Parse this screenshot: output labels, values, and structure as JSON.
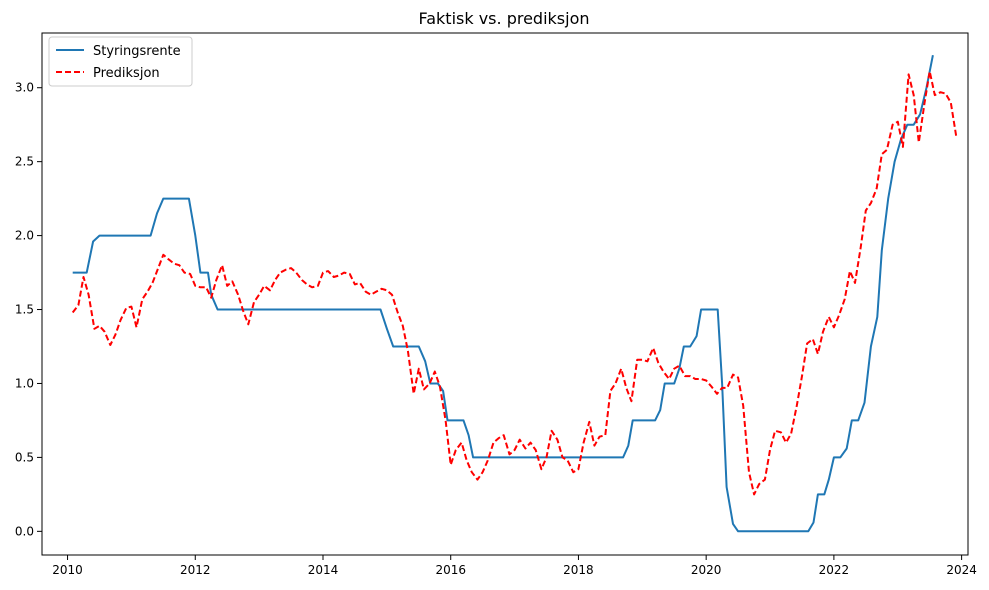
{
  "chart_data": {
    "type": "line",
    "title": "Faktisk vs. prediksjon",
    "xlabel": "",
    "ylabel": "",
    "xlim": [
      2009.6,
      2024.1
    ],
    "ylim": [
      -0.16,
      3.37
    ],
    "x_ticks": [
      2010,
      2012,
      2014,
      2016,
      2018,
      2020,
      2022,
      2024
    ],
    "x_tick_labels": [
      "2010",
      "2012",
      "2014",
      "2016",
      "2018",
      "2020",
      "2022",
      "2024"
    ],
    "y_ticks": [
      0.0,
      0.5,
      1.0,
      1.5,
      2.0,
      2.5,
      3.0
    ],
    "y_tick_labels": [
      "0.0",
      "0.5",
      "1.0",
      "1.5",
      "2.0",
      "2.5",
      "3.0"
    ],
    "legend_position": "top-left",
    "series": [
      {
        "name": "Styringsrente",
        "color": "#1f77b4",
        "style": "solid",
        "points": [
          [
            2010.08,
            1.75
          ],
          [
            2010.3,
            1.75
          ],
          [
            2010.4,
            1.96
          ],
          [
            2010.5,
            2.0
          ],
          [
            2011.3,
            2.0
          ],
          [
            2011.4,
            2.15
          ],
          [
            2011.5,
            2.25
          ],
          [
            2011.9,
            2.25
          ],
          [
            2012.0,
            2.0
          ],
          [
            2012.08,
            1.75
          ],
          [
            2012.2,
            1.75
          ],
          [
            2012.25,
            1.6
          ],
          [
            2012.35,
            1.5
          ],
          [
            2014.9,
            1.5
          ],
          [
            2015.0,
            1.37
          ],
          [
            2015.1,
            1.25
          ],
          [
            2015.5,
            1.25
          ],
          [
            2015.6,
            1.15
          ],
          [
            2015.68,
            1.0
          ],
          [
            2015.8,
            1.0
          ],
          [
            2015.88,
            0.95
          ],
          [
            2015.95,
            0.75
          ],
          [
            2016.2,
            0.75
          ],
          [
            2016.28,
            0.65
          ],
          [
            2016.35,
            0.5
          ],
          [
            2018.7,
            0.5
          ],
          [
            2018.78,
            0.58
          ],
          [
            2018.85,
            0.75
          ],
          [
            2019.2,
            0.75
          ],
          [
            2019.28,
            0.82
          ],
          [
            2019.35,
            1.0
          ],
          [
            2019.5,
            1.0
          ],
          [
            2019.58,
            1.1
          ],
          [
            2019.65,
            1.25
          ],
          [
            2019.75,
            1.25
          ],
          [
            2019.85,
            1.32
          ],
          [
            2019.92,
            1.5
          ],
          [
            2020.18,
            1.5
          ],
          [
            2020.25,
            1.0
          ],
          [
            2020.32,
            0.3
          ],
          [
            2020.42,
            0.05
          ],
          [
            2020.5,
            0.0
          ],
          [
            2021.6,
            0.0
          ],
          [
            2021.68,
            0.06
          ],
          [
            2021.75,
            0.25
          ],
          [
            2021.85,
            0.25
          ],
          [
            2021.92,
            0.35
          ],
          [
            2022.0,
            0.5
          ],
          [
            2022.1,
            0.5
          ],
          [
            2022.2,
            0.56
          ],
          [
            2022.28,
            0.75
          ],
          [
            2022.38,
            0.75
          ],
          [
            2022.48,
            0.87
          ],
          [
            2022.58,
            1.25
          ],
          [
            2022.68,
            1.45
          ],
          [
            2022.75,
            1.9
          ],
          [
            2022.85,
            2.25
          ],
          [
            2022.95,
            2.5
          ],
          [
            2023.05,
            2.65
          ],
          [
            2023.15,
            2.75
          ],
          [
            2023.25,
            2.75
          ],
          [
            2023.35,
            2.82
          ],
          [
            2023.45,
            3.0
          ],
          [
            2023.55,
            3.22
          ]
        ]
      },
      {
        "name": "Prediksjon",
        "color": "#ff0000",
        "style": "dashed",
        "points": [
          [
            2010.08,
            1.48
          ],
          [
            2010.17,
            1.53
          ],
          [
            2010.25,
            1.72
          ],
          [
            2010.33,
            1.6
          ],
          [
            2010.42,
            1.37
          ],
          [
            2010.5,
            1.39
          ],
          [
            2010.58,
            1.35
          ],
          [
            2010.67,
            1.26
          ],
          [
            2010.75,
            1.33
          ],
          [
            2010.83,
            1.43
          ],
          [
            2010.92,
            1.51
          ],
          [
            2011.0,
            1.52
          ],
          [
            2011.08,
            1.38
          ],
          [
            2011.17,
            1.57
          ],
          [
            2011.25,
            1.62
          ],
          [
            2011.33,
            1.68
          ],
          [
            2011.42,
            1.78
          ],
          [
            2011.5,
            1.87
          ],
          [
            2011.58,
            1.84
          ],
          [
            2011.67,
            1.81
          ],
          [
            2011.75,
            1.8
          ],
          [
            2011.83,
            1.75
          ],
          [
            2011.92,
            1.74
          ],
          [
            2012.0,
            1.66
          ],
          [
            2012.08,
            1.65
          ],
          [
            2012.17,
            1.65
          ],
          [
            2012.25,
            1.58
          ],
          [
            2012.33,
            1.7
          ],
          [
            2012.42,
            1.8
          ],
          [
            2012.5,
            1.66
          ],
          [
            2012.58,
            1.69
          ],
          [
            2012.67,
            1.6
          ],
          [
            2012.75,
            1.49
          ],
          [
            2012.83,
            1.4
          ],
          [
            2012.92,
            1.55
          ],
          [
            2013.0,
            1.6
          ],
          [
            2013.08,
            1.66
          ],
          [
            2013.17,
            1.63
          ],
          [
            2013.25,
            1.7
          ],
          [
            2013.33,
            1.75
          ],
          [
            2013.42,
            1.77
          ],
          [
            2013.5,
            1.78
          ],
          [
            2013.58,
            1.75
          ],
          [
            2013.67,
            1.7
          ],
          [
            2013.75,
            1.67
          ],
          [
            2013.83,
            1.65
          ],
          [
            2013.92,
            1.66
          ],
          [
            2014.0,
            1.75
          ],
          [
            2014.08,
            1.76
          ],
          [
            2014.17,
            1.72
          ],
          [
            2014.25,
            1.73
          ],
          [
            2014.33,
            1.75
          ],
          [
            2014.42,
            1.74
          ],
          [
            2014.5,
            1.67
          ],
          [
            2014.58,
            1.68
          ],
          [
            2014.67,
            1.62
          ],
          [
            2014.75,
            1.6
          ],
          [
            2014.83,
            1.62
          ],
          [
            2014.92,
            1.64
          ],
          [
            2015.0,
            1.63
          ],
          [
            2015.08,
            1.6
          ],
          [
            2015.17,
            1.48
          ],
          [
            2015.25,
            1.39
          ],
          [
            2015.33,
            1.22
          ],
          [
            2015.42,
            0.93
          ],
          [
            2015.5,
            1.1
          ],
          [
            2015.58,
            0.96
          ],
          [
            2015.67,
            1.0
          ],
          [
            2015.75,
            1.08
          ],
          [
            2015.83,
            0.98
          ],
          [
            2015.92,
            0.75
          ],
          [
            2016.0,
            0.45
          ],
          [
            2016.08,
            0.55
          ],
          [
            2016.17,
            0.6
          ],
          [
            2016.25,
            0.48
          ],
          [
            2016.33,
            0.4
          ],
          [
            2016.42,
            0.35
          ],
          [
            2016.5,
            0.4
          ],
          [
            2016.58,
            0.48
          ],
          [
            2016.67,
            0.6
          ],
          [
            2016.75,
            0.63
          ],
          [
            2016.83,
            0.65
          ],
          [
            2016.92,
            0.52
          ],
          [
            2017.0,
            0.55
          ],
          [
            2017.08,
            0.62
          ],
          [
            2017.17,
            0.56
          ],
          [
            2017.25,
            0.6
          ],
          [
            2017.33,
            0.55
          ],
          [
            2017.42,
            0.42
          ],
          [
            2017.5,
            0.5
          ],
          [
            2017.58,
            0.68
          ],
          [
            2017.67,
            0.62
          ],
          [
            2017.75,
            0.5
          ],
          [
            2017.83,
            0.48
          ],
          [
            2017.92,
            0.4
          ],
          [
            2018.0,
            0.42
          ],
          [
            2018.08,
            0.6
          ],
          [
            2018.17,
            0.74
          ],
          [
            2018.25,
            0.58
          ],
          [
            2018.33,
            0.64
          ],
          [
            2018.42,
            0.65
          ],
          [
            2018.5,
            0.95
          ],
          [
            2018.58,
            1.0
          ],
          [
            2018.67,
            1.1
          ],
          [
            2018.75,
            0.97
          ],
          [
            2018.83,
            0.88
          ],
          [
            2018.92,
            1.16
          ],
          [
            2019.0,
            1.16
          ],
          [
            2019.08,
            1.15
          ],
          [
            2019.17,
            1.24
          ],
          [
            2019.25,
            1.14
          ],
          [
            2019.33,
            1.08
          ],
          [
            2019.42,
            1.03
          ],
          [
            2019.5,
            1.1
          ],
          [
            2019.58,
            1.12
          ],
          [
            2019.67,
            1.05
          ],
          [
            2019.75,
            1.05
          ],
          [
            2019.83,
            1.03
          ],
          [
            2019.92,
            1.03
          ],
          [
            2020.0,
            1.02
          ],
          [
            2020.08,
            0.98
          ],
          [
            2020.17,
            0.93
          ],
          [
            2020.25,
            0.97
          ],
          [
            2020.33,
            0.97
          ],
          [
            2020.42,
            1.06
          ],
          [
            2020.5,
            1.04
          ],
          [
            2020.58,
            0.85
          ],
          [
            2020.67,
            0.4
          ],
          [
            2020.75,
            0.25
          ],
          [
            2020.83,
            0.32
          ],
          [
            2020.92,
            0.35
          ],
          [
            2021.0,
            0.55
          ],
          [
            2021.08,
            0.68
          ],
          [
            2021.17,
            0.67
          ],
          [
            2021.25,
            0.6
          ],
          [
            2021.33,
            0.66
          ],
          [
            2021.42,
            0.85
          ],
          [
            2021.5,
            1.05
          ],
          [
            2021.58,
            1.27
          ],
          [
            2021.67,
            1.3
          ],
          [
            2021.75,
            1.2
          ],
          [
            2021.83,
            1.35
          ],
          [
            2021.92,
            1.45
          ],
          [
            2022.0,
            1.38
          ],
          [
            2022.08,
            1.46
          ],
          [
            2022.17,
            1.57
          ],
          [
            2022.25,
            1.76
          ],
          [
            2022.33,
            1.68
          ],
          [
            2022.42,
            1.92
          ],
          [
            2022.5,
            2.17
          ],
          [
            2022.58,
            2.22
          ],
          [
            2022.67,
            2.32
          ],
          [
            2022.75,
            2.55
          ],
          [
            2022.83,
            2.58
          ],
          [
            2022.92,
            2.75
          ],
          [
            2023.0,
            2.77
          ],
          [
            2023.08,
            2.6
          ],
          [
            2023.17,
            3.09
          ],
          [
            2023.25,
            2.95
          ],
          [
            2023.33,
            2.63
          ],
          [
            2023.42,
            2.9
          ],
          [
            2023.5,
            3.11
          ],
          [
            2023.58,
            2.95
          ],
          [
            2023.67,
            2.97
          ],
          [
            2023.75,
            2.96
          ],
          [
            2023.83,
            2.9
          ],
          [
            2023.92,
            2.66
          ]
        ]
      }
    ]
  }
}
